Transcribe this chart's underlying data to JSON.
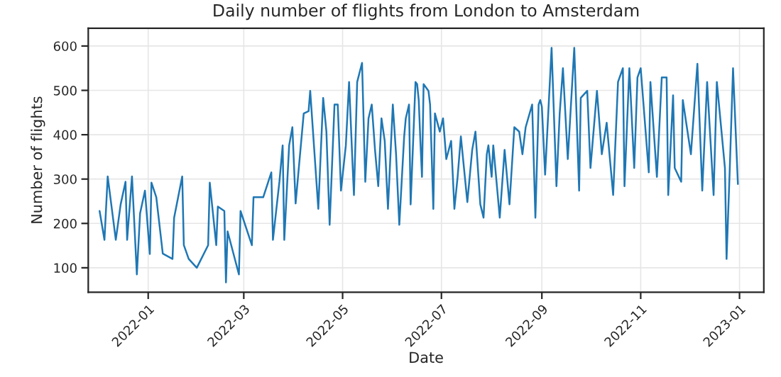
{
  "chart_data": {
    "type": "line",
    "title": "Daily number of flights from London to Amsterdam",
    "xlabel": "Date",
    "ylabel": "Number of flights",
    "x": [
      "2021-12-02",
      "2021-12-05",
      "2021-12-07",
      "2021-12-12",
      "2021-12-15",
      "2021-12-18",
      "2021-12-19",
      "2021-12-22",
      "2021-12-25",
      "2021-12-27",
      "2021-12-30",
      "2022-01-02",
      "2022-01-03",
      "2022-01-06",
      "2022-01-10",
      "2022-01-16",
      "2022-01-17",
      "2022-01-22",
      "2022-01-23",
      "2022-01-26",
      "2022-01-31",
      "2022-02-07",
      "2022-02-08",
      "2022-02-12",
      "2022-02-13",
      "2022-02-17",
      "2022-02-18",
      "2022-02-19",
      "2022-02-26",
      "2022-02-27",
      "2022-03-06",
      "2022-03-07",
      "2022-03-13",
      "2022-03-18",
      "2022-03-19",
      "2022-03-23",
      "2022-03-25",
      "2022-03-26",
      "2022-03-29",
      "2022-03-31",
      "2022-04-02",
      "2022-04-07",
      "2022-04-10",
      "2022-04-11",
      "2022-04-16",
      "2022-04-19",
      "2022-04-21",
      "2022-04-23",
      "2022-04-26",
      "2022-04-28",
      "2022-04-30",
      "2022-05-03",
      "2022-05-05",
      "2022-05-07",
      "2022-05-08",
      "2022-05-10",
      "2022-05-13",
      "2022-05-15",
      "2022-05-17",
      "2022-05-19",
      "2022-05-21",
      "2022-05-23",
      "2022-05-25",
      "2022-05-27",
      "2022-05-29",
      "2022-06-01",
      "2022-06-03",
      "2022-06-05",
      "2022-06-08",
      "2022-06-09",
      "2022-06-11",
      "2022-06-12",
      "2022-06-15",
      "2022-06-16",
      "2022-06-17",
      "2022-06-18",
      "2022-06-19",
      "2022-06-20",
      "2022-06-23",
      "2022-06-24",
      "2022-06-26",
      "2022-06-27",
      "2022-06-30",
      "2022-07-02",
      "2022-07-04",
      "2022-07-07",
      "2022-07-09",
      "2022-07-11",
      "2022-07-13",
      "2022-07-17",
      "2022-07-20",
      "2022-07-22",
      "2022-07-25",
      "2022-07-27",
      "2022-07-29",
      "2022-07-30",
      "2022-08-01",
      "2022-08-02",
      "2022-08-06",
      "2022-08-09",
      "2022-08-12",
      "2022-08-15",
      "2022-08-18",
      "2022-08-20",
      "2022-08-22",
      "2022-08-26",
      "2022-08-28",
      "2022-08-30",
      "2022-08-31",
      "2022-09-01",
      "2022-09-03",
      "2022-09-07",
      "2022-09-10",
      "2022-09-12",
      "2022-09-14",
      "2022-09-17",
      "2022-09-21",
      "2022-09-24",
      "2022-09-25",
      "2022-09-29",
      "2022-10-01",
      "2022-10-05",
      "2022-10-08",
      "2022-10-11",
      "2022-10-15",
      "2022-10-18",
      "2022-10-21",
      "2022-10-22",
      "2022-10-25",
      "2022-10-28",
      "2022-10-30",
      "2022-11-01",
      "2022-11-06",
      "2022-11-07",
      "2022-11-11",
      "2022-11-14",
      "2022-11-17",
      "2022-11-18",
      "2022-11-21",
      "2022-11-22",
      "2022-11-26",
      "2022-11-27",
      "2022-12-02",
      "2022-12-06",
      "2022-12-09",
      "2022-12-12",
      "2022-12-16",
      "2022-12-18",
      "2022-12-23",
      "2022-12-24",
      "2022-12-26",
      "2022-12-28",
      "2022-12-31"
    ],
    "series": [
      {
        "color": "#1f77b4",
        "values": [
          228,
          163,
          306,
          163,
          243,
          294,
          163,
          306,
          85,
          223,
          274,
          131,
          292,
          259,
          132,
          120,
          213,
          306,
          151,
          120,
          100,
          151,
          292,
          151,
          238,
          228,
          67,
          182,
          85,
          228,
          151,
          259,
          259,
          315,
          163,
          294,
          376,
          163,
          376,
          417,
          245,
          448,
          453,
          499,
          233,
          483,
          407,
          197,
          468,
          468,
          274,
          376,
          519,
          345,
          264,
          519,
          562,
          294,
          437,
          468,
          366,
          284,
          437,
          386,
          233,
          468,
          356,
          197,
          396,
          437,
          468,
          243,
          519,
          514,
          478,
          386,
          305,
          514,
          499,
          468,
          233,
          448,
          407,
          437,
          345,
          386,
          233,
          305,
          396,
          248,
          366,
          407,
          243,
          213,
          356,
          376,
          305,
          376,
          213,
          366,
          243,
          417,
          407,
          356,
          417,
          468,
          213,
          468,
          478,
          463,
          310,
          596,
          284,
          448,
          550,
          345,
          596,
          274,
          483,
          499,
          325,
          499,
          356,
          427,
          264,
          519,
          550,
          284,
          550,
          325,
          529,
          550,
          315,
          519,
          305,
          529,
          529,
          264,
          489,
          325,
          294,
          478,
          356,
          560,
          274,
          519,
          264,
          519,
          325,
          120,
          325,
          550,
          289
        ]
      }
    ],
    "xlim": [
      "2021-11-25",
      "2023-01-16"
    ],
    "xticks": [
      {
        "value": "2022-01-01",
        "label": "2022-01"
      },
      {
        "value": "2022-03-01",
        "label": "2022-03"
      },
      {
        "value": "2022-05-01",
        "label": "2022-05"
      },
      {
        "value": "2022-07-01",
        "label": "2022-07"
      },
      {
        "value": "2022-09-01",
        "label": "2022-09"
      },
      {
        "value": "2022-11-01",
        "label": "2022-11"
      },
      {
        "value": "2023-01-01",
        "label": "2023-01"
      }
    ],
    "ylim": [
      45,
      640
    ],
    "yticks": [
      100,
      200,
      300,
      400,
      500,
      600
    ],
    "grid": true,
    "line_style": "solid",
    "marker": "none",
    "legend": false
  }
}
